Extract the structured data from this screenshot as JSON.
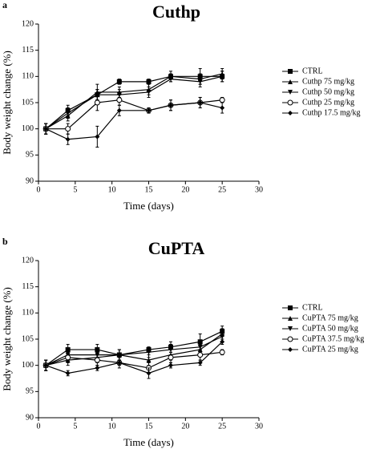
{
  "chart_data": [
    {
      "type": "line",
      "panel_label": "a",
      "title": "Cuthp",
      "x_label": "Time (days)",
      "y_label": "Body weight change (%)",
      "xlim": [
        0,
        30
      ],
      "xticks": [
        0,
        5,
        10,
        15,
        20,
        25,
        30
      ],
      "ylim": [
        90,
        120
      ],
      "yticks": [
        90,
        95,
        100,
        105,
        110,
        115,
        120
      ],
      "x": [
        1,
        4,
        8,
        11,
        15,
        18,
        22,
        25
      ],
      "series": [
        {
          "name": "CTRL",
          "color": "#000000",
          "marker": "square",
          "values": [
            100,
            103.5,
            106.5,
            109,
            109,
            110,
            110,
            110
          ],
          "errors": [
            1,
            1,
            1,
            0.5,
            0.5,
            0.5,
            1.5,
            1
          ]
        },
        {
          "name": "Cuthp 75 mg/kg",
          "color": "#000000",
          "marker": "triangle-up",
          "values": [
            100,
            102.5,
            107,
            107,
            107.5,
            110,
            109.5,
            110.5
          ],
          "errors": [
            1,
            1,
            1.5,
            1,
            1,
            1,
            1,
            1
          ]
        },
        {
          "name": "Cuthp 50 mg/kg",
          "color": "#000000",
          "marker": "triangle-down",
          "values": [
            100,
            103,
            106.5,
            106.5,
            107,
            109.5,
            109,
            110
          ],
          "errors": [
            1,
            1,
            1,
            1,
            1,
            0.5,
            1,
            1
          ]
        },
        {
          "name": "Cuthp 25 mg/kg",
          "color": "#000000",
          "marker": "circle",
          "values": [
            100,
            100,
            105,
            105.5,
            103.5,
            104.5,
            105,
            105.5
          ],
          "errors": [
            1,
            1,
            1.5,
            1,
            0.5,
            1,
            1,
            0.5
          ]
        },
        {
          "name": "Cuthp 17.5 mg/kg",
          "color": "#000000",
          "marker": "diamond",
          "values": [
            100,
            98,
            98.5,
            103.5,
            103.5,
            104.5,
            105,
            104
          ],
          "errors": [
            1,
            1,
            2,
            1,
            0.5,
            1,
            1,
            1
          ]
        }
      ]
    },
    {
      "type": "line",
      "panel_label": "b",
      "title": "CuPTA",
      "x_label": "Time (days)",
      "y_label": "Body weight change (%)",
      "xlim": [
        0,
        30
      ],
      "xticks": [
        0,
        5,
        10,
        15,
        20,
        25,
        30
      ],
      "ylim": [
        90,
        120
      ],
      "yticks": [
        90,
        95,
        100,
        105,
        110,
        115,
        120
      ],
      "x": [
        1,
        4,
        8,
        11,
        15,
        18,
        22,
        25
      ],
      "series": [
        {
          "name": "CTRL",
          "color": "#000000",
          "marker": "square",
          "values": [
            100,
            103,
            103,
            102,
            103,
            103.5,
            104.5,
            106.5
          ],
          "errors": [
            1,
            1,
            1,
            1,
            0.5,
            1,
            1.5,
            1
          ]
        },
        {
          "name": "CuPTA 75 mg/kg",
          "color": "#000000",
          "marker": "triangle-up",
          "values": [
            100,
            101,
            101.5,
            102,
            101,
            102,
            103,
            106
          ],
          "errors": [
            1,
            1,
            1,
            1,
            1,
            1,
            1,
            1
          ]
        },
        {
          "name": "CuPTA 50 mg/kg",
          "color": "#000000",
          "marker": "triangle-down",
          "values": [
            100,
            102,
            102,
            102,
            102.5,
            103,
            103.5,
            105.5
          ],
          "errors": [
            1,
            1,
            1,
            1,
            1,
            1,
            1,
            1
          ]
        },
        {
          "name": "CuPTA 37.5 mg/kg",
          "color": "#000000",
          "marker": "circle",
          "values": [
            100,
            101.5,
            101,
            100.5,
            99.5,
            101.5,
            102,
            102.5
          ],
          "errors": [
            1,
            1,
            1,
            1,
            1,
            1,
            1,
            0.5
          ]
        },
        {
          "name": "CuPTA 25 mg/kg",
          "color": "#000000",
          "marker": "diamond",
          "values": [
            100,
            98.5,
            99.5,
            100.5,
            98.5,
            100,
            100.5,
            104.5
          ],
          "errors": [
            1,
            0.5,
            0.5,
            0.5,
            1,
            0.5,
            0.5,
            0.5
          ]
        }
      ]
    }
  ]
}
